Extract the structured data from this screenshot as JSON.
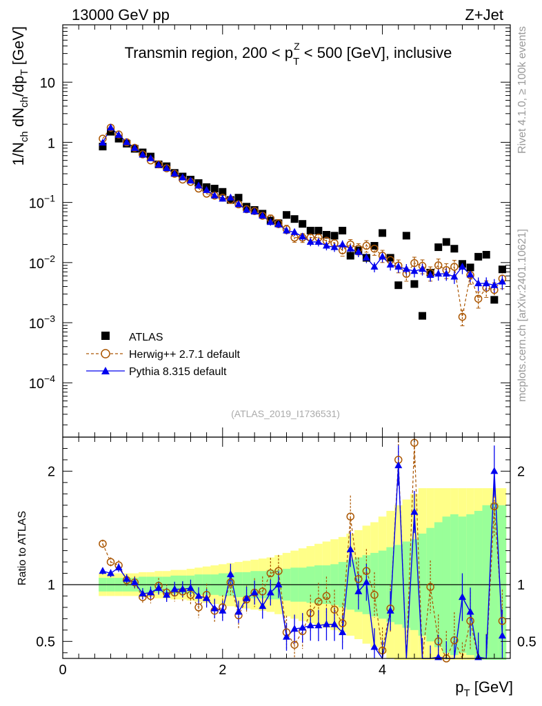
{
  "header": {
    "left": "13000 GeV pp",
    "right": "Z+Jet"
  },
  "side": {
    "rivet": "Rivet 4.1.0, ≥ 100k events",
    "mcplots": "mcplots.cern.ch [arXiv:2401.10621]"
  },
  "colors": {
    "atlas": "#000000",
    "herwig": "#aa5500",
    "pythia": "#0000ee",
    "band_inner": "#99ff99",
    "band_outer": "#ffff88"
  },
  "chart_data": [
    {
      "type": "scatter",
      "panel": "main",
      "title": "Transmin region, 200 < p_T^Z < 500 [GeV], inclusive",
      "title_parts": {
        "pre": "Transmin region, 200 < p",
        "sub": "T",
        "sup": "Z",
        "post": " < 500 [GeV], inclusive"
      },
      "ylabel_parts": {
        "a": "1/N",
        "b": "ch",
        "c": " dN",
        "d": "ch",
        "e": "/dp",
        "f": "T",
        "g": " [GeV]"
      },
      "yscale": "log",
      "ylim": [
        1.25e-05,
        90
      ],
      "xlim": [
        0,
        5.6
      ],
      "ytick_labels": [
        {
          "base": "10",
          "exp": "−4",
          "value": 0.0001
        },
        {
          "base": "10",
          "exp": "−3",
          "value": 0.001
        },
        {
          "base": "10",
          "exp": "−2",
          "value": 0.01
        },
        {
          "base": "10",
          "exp": "−1",
          "value": 0.1
        },
        {
          "base": "1",
          "exp": "",
          "value": 1
        },
        {
          "base": "10",
          "exp": "",
          "value": 10
        }
      ],
      "watermark": "(ATLAS_2019_I1736531)",
      "legend": {
        "position": "bottom-left",
        "entries": [
          "ATLAS",
          "Herwig++ 2.7.1 default",
          "Pythia 8.315 default"
        ]
      },
      "x": [
        0.5,
        0.6,
        0.7,
        0.8,
        0.9,
        1.0,
        1.1,
        1.2,
        1.3,
        1.4,
        1.5,
        1.6,
        1.7,
        1.8,
        1.9,
        2.0,
        2.1,
        2.2,
        2.3,
        2.4,
        2.5,
        2.6,
        2.7,
        2.8,
        2.9,
        3.0,
        3.1,
        3.2,
        3.3,
        3.4,
        3.5,
        3.6,
        3.7,
        3.8,
        3.9,
        4.0,
        4.1,
        4.2,
        4.3,
        4.4,
        4.5,
        4.6,
        4.7,
        4.8,
        4.9,
        5.0,
        5.1,
        5.2,
        5.3,
        5.4,
        5.5
      ],
      "series": [
        {
          "name": "ATLAS",
          "marker": "square",
          "values": [
            0.85,
            1.5,
            1.15,
            0.95,
            0.78,
            0.68,
            0.58,
            0.43,
            0.4,
            0.31,
            0.27,
            0.24,
            0.21,
            0.18,
            0.17,
            0.15,
            0.11,
            0.12,
            0.085,
            0.075,
            0.065,
            0.05,
            0.045,
            0.062,
            0.053,
            0.044,
            0.034,
            0.034,
            0.029,
            0.028,
            0.034,
            0.013,
            0.016,
            0.012,
            0.019,
            0.031,
            0.012,
            0.0042,
            0.028,
            0.0044,
            0.0013,
            0.0068,
            0.018,
            0.022,
            0.017,
            0.0095,
            0.0083,
            0.0125,
            0.0135,
            0.0024,
            0.0077
          ]
        },
        {
          "name": "Herwig++ 2.7.1 default",
          "marker": "open-circle",
          "style": "dashed",
          "values": [
            1.15,
            1.75,
            1.35,
            1.0,
            0.81,
            0.63,
            0.5,
            0.43,
            0.37,
            0.3,
            0.24,
            0.22,
            0.17,
            0.14,
            0.13,
            0.12,
            0.11,
            0.093,
            0.077,
            0.072,
            0.06,
            0.054,
            0.045,
            0.036,
            0.026,
            0.026,
            0.026,
            0.026,
            0.023,
            0.021,
            0.016,
            0.02,
            0.017,
            0.019,
            0.017,
            0.013,
            0.011,
            0.0089,
            0.0065,
            0.0098,
            0.0088,
            0.0067,
            0.009,
            0.0075,
            0.0085,
            0.00125,
            0.0062,
            0.0025,
            0.0038,
            0.0035,
            0.0054
          ]
        },
        {
          "name": "Pythia 8.315 default",
          "marker": "filled-triangle",
          "style": "solid",
          "values": [
            0.98,
            1.75,
            1.32,
            1.0,
            0.8,
            0.62,
            0.54,
            0.42,
            0.37,
            0.3,
            0.26,
            0.23,
            0.19,
            0.16,
            0.13,
            0.115,
            0.12,
            0.093,
            0.075,
            0.07,
            0.06,
            0.047,
            0.043,
            0.034,
            0.032,
            0.027,
            0.022,
            0.022,
            0.019,
            0.018,
            0.02,
            0.017,
            0.015,
            0.012,
            0.0085,
            0.0125,
            0.0092,
            0.0085,
            0.0078,
            0.0072,
            0.0078,
            0.0062,
            0.0065,
            0.0065,
            0.0058,
            0.0085,
            0.0063,
            0.0045,
            0.0045,
            0.0042,
            0.0048
          ]
        }
      ]
    },
    {
      "type": "line",
      "panel": "ratio",
      "ylabel": "Ratio to ATLAS",
      "xlabel_parts": {
        "a": "p",
        "b": "T",
        "c": " [GeV]"
      },
      "xlim": [
        0,
        5.6
      ],
      "ylim": [
        0.35,
        2.3
      ],
      "xtick_labels": [
        "0",
        "2",
        "4"
      ],
      "xticks": [
        0,
        2,
        4
      ],
      "ytick_labels": [
        "0.5",
        "1",
        "2"
      ],
      "yticks": [
        0.5,
        1,
        2
      ],
      "x": [
        0.5,
        0.6,
        0.7,
        0.8,
        0.9,
        1.0,
        1.1,
        1.2,
        1.3,
        1.4,
        1.5,
        1.6,
        1.7,
        1.8,
        1.9,
        2.0,
        2.1,
        2.2,
        2.3,
        2.4,
        2.5,
        2.6,
        2.7,
        2.8,
        2.9,
        3.0,
        3.1,
        3.2,
        3.3,
        3.4,
        3.5,
        3.6,
        3.7,
        3.8,
        3.9,
        4.0,
        4.1,
        4.2,
        4.3,
        4.4,
        4.5,
        4.6,
        4.7,
        4.8,
        4.9,
        5.0,
        5.1,
        5.2,
        5.3,
        5.4,
        5.5
      ],
      "band_inner_halfwidth": [
        0.06,
        0.06,
        0.06,
        0.06,
        0.06,
        0.07,
        0.07,
        0.07,
        0.07,
        0.08,
        0.08,
        0.08,
        0.09,
        0.09,
        0.09,
        0.1,
        0.1,
        0.11,
        0.11,
        0.12,
        0.12,
        0.13,
        0.13,
        0.14,
        0.15,
        0.15,
        0.16,
        0.17,
        0.17,
        0.18,
        0.2,
        0.22,
        0.24,
        0.26,
        0.28,
        0.3,
        0.33,
        0.35,
        0.38,
        0.4,
        0.45,
        0.5,
        0.55,
        0.6,
        0.62,
        0.6,
        0.62,
        0.65,
        0.7,
        0.72,
        0.7
      ],
      "band_outer_halfwidth": [
        0.1,
        0.1,
        0.1,
        0.1,
        0.1,
        0.11,
        0.11,
        0.12,
        0.12,
        0.13,
        0.13,
        0.14,
        0.15,
        0.16,
        0.17,
        0.18,
        0.19,
        0.2,
        0.21,
        0.22,
        0.23,
        0.24,
        0.26,
        0.28,
        0.3,
        0.32,
        0.34,
        0.36,
        0.38,
        0.4,
        0.42,
        0.45,
        0.48,
        0.52,
        0.55,
        0.6,
        0.65,
        0.7,
        0.75,
        0.8,
        0.85,
        0.85,
        0.85,
        0.85,
        0.85,
        0.85,
        0.85,
        0.85,
        0.85,
        0.85,
        0.85
      ],
      "series": [
        {
          "name": "Herwig++ 2.7.1 default",
          "marker": "open-circle",
          "style": "dashed",
          "values": [
            1.36,
            1.2,
            1.17,
            1.04,
            1.02,
            0.89,
            0.9,
            0.99,
            0.93,
            0.93,
            0.94,
            0.91,
            0.8,
            0.91,
            0.77,
            0.8,
            1.02,
            0.73,
            0.87,
            0.93,
            0.94,
            1.1,
            1.12,
            0.58,
            0.47,
            0.59,
            0.75,
            0.85,
            0.9,
            0.78,
            0.66,
            1.6,
            1.05,
            1.12,
            0.91,
            0.42,
            0.79,
            2.1,
            0.24,
            2.25,
            0.24,
            0.98,
            0.5,
            0.35,
            0.51,
            0.24,
            0.68,
            0.24,
            0.3,
            1.69,
            0.68
          ]
        },
        {
          "name": "Pythia 8.315 default",
          "marker": "filled-triangle",
          "style": "solid",
          "values": [
            1.12,
            1.1,
            1.15,
            1.05,
            1.02,
            0.92,
            0.93,
            0.97,
            0.91,
            0.96,
            0.96,
            0.97,
            0.9,
            0.88,
            0.79,
            0.77,
            1.09,
            0.76,
            0.88,
            0.93,
            0.81,
            0.93,
            1.0,
            0.54,
            0.61,
            0.62,
            0.64,
            0.64,
            0.65,
            0.65,
            0.58,
            1.31,
            0.94,
            1.02,
            0.45,
            0.34,
            0.77,
            2.05,
            0.28,
            1.64,
            0.34,
            0.27,
            0.36,
            0.3,
            0.34,
            0.89,
            0.76,
            0.36,
            0.34,
            2.0,
            0.55
          ]
        }
      ]
    }
  ]
}
